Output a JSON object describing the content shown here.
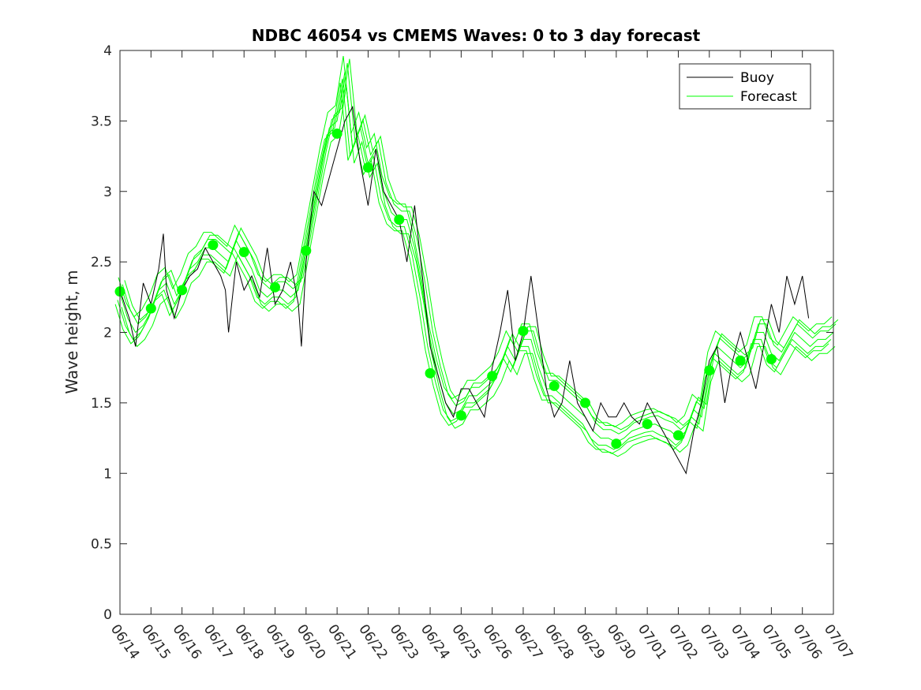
{
  "chart_data": {
    "type": "line",
    "title": "NDBC 46054 vs CMEMS Waves: 0 to 3 day forecast",
    "xlabel": "",
    "ylabel": "Wave height, m",
    "ylim": [
      0,
      4
    ],
    "yticks": [
      "0",
      "0.5",
      "1",
      "1.5",
      "2",
      "2.5",
      "3",
      "3.5",
      "4"
    ],
    "xlim": [
      "06/14",
      "07/07"
    ],
    "xtick_labels": [
      "06/14",
      "06/15",
      "06/16",
      "06/17",
      "06/18",
      "06/19",
      "06/20",
      "06/21",
      "06/22",
      "06/23",
      "06/24",
      "06/25",
      "06/26",
      "06/27",
      "06/28",
      "06/29",
      "06/30",
      "07/01",
      "07/02",
      "07/03",
      "07/04",
      "07/05",
      "07/06",
      "07/07"
    ],
    "grid": false,
    "legend": {
      "placement": "top-right",
      "entries": [
        "Buoy",
        "Forecast"
      ]
    },
    "colors": {
      "buoy": "#000000",
      "forecast": "#00ff00",
      "axes": "#262626"
    },
    "series": [
      {
        "name": "Buoy",
        "x": [
          0,
          0.3,
          0.5,
          0.75,
          1,
          1.25,
          1.4,
          1.5,
          1.75,
          2,
          2.25,
          2.5,
          2.75,
          3,
          3.25,
          3.4,
          3.5,
          3.75,
          4,
          4.25,
          4.5,
          4.75,
          5,
          5.25,
          5.5,
          5.75,
          5.85,
          6,
          6.25,
          6.5,
          6.75,
          7,
          7.25,
          7.5,
          7.75,
          8,
          8.25,
          8.5,
          8.75,
          9,
          9.25,
          9.5,
          9.75,
          10,
          10.25,
          10.5,
          10.75,
          11,
          11.25,
          11.5,
          11.75,
          12,
          12.25,
          12.5,
          12.75,
          13,
          13.25,
          13.5,
          13.75,
          14,
          14.25,
          14.5,
          14.75,
          15,
          15.25,
          15.5,
          15.75,
          16,
          16.25,
          16.5,
          16.75,
          17,
          17.25,
          17.5,
          17.75,
          18,
          18.25,
          18.5,
          18.75,
          19,
          19.25,
          19.5,
          19.75,
          20,
          20.25,
          20.5,
          20.75,
          21,
          21.25,
          21.5,
          21.75,
          22,
          22.2
        ],
        "y": [
          2.3,
          2.1,
          1.9,
          2.35,
          2.2,
          2.45,
          2.7,
          2.3,
          2.1,
          2.3,
          2.4,
          2.45,
          2.6,
          2.5,
          2.4,
          2.3,
          2.0,
          2.5,
          2.3,
          2.4,
          2.25,
          2.6,
          2.2,
          2.3,
          2.5,
          2.2,
          1.9,
          2.5,
          3.0,
          2.9,
          3.1,
          3.3,
          3.5,
          3.6,
          3.2,
          2.9,
          3.3,
          3.0,
          2.9,
          2.8,
          2.5,
          2.9,
          2.4,
          1.9,
          1.7,
          1.5,
          1.4,
          1.6,
          1.6,
          1.5,
          1.4,
          1.75,
          2.0,
          2.3,
          1.8,
          2.0,
          2.4,
          2.0,
          1.6,
          1.4,
          1.5,
          1.8,
          1.5,
          1.4,
          1.3,
          1.5,
          1.4,
          1.4,
          1.5,
          1.4,
          1.35,
          1.5,
          1.4,
          1.3,
          1.2,
          1.1,
          1.0,
          1.3,
          1.5,
          1.8,
          1.9,
          1.5,
          1.8,
          2.0,
          1.8,
          1.6,
          1.9,
          2.2,
          2.0,
          2.4,
          2.2,
          2.4,
          2.1
        ]
      },
      {
        "name": "Forecast",
        "x": [
          0,
          0.25,
          0.5,
          0.75,
          1,
          1.25,
          1.5,
          1.75,
          2,
          2.25,
          2.5,
          2.75,
          3,
          3.25,
          3.5,
          3.75,
          4,
          4.25,
          4.5,
          4.75,
          5,
          5.25,
          5.5,
          5.75,
          6,
          6.25,
          6.5,
          6.75,
          7,
          7.25,
          7.5,
          7.75,
          8,
          8.25,
          8.5,
          8.75,
          9,
          9.25,
          9.5,
          9.75,
          10,
          10.25,
          10.5,
          10.75,
          11,
          11.25,
          11.5,
          11.75,
          12,
          12.25,
          12.5,
          12.75,
          13,
          13.25,
          13.5,
          13.75,
          14,
          14.25,
          14.5,
          14.75,
          15,
          15.25,
          15.5,
          15.75,
          16,
          16.25,
          16.5,
          16.75,
          17,
          17.25,
          17.5,
          17.75,
          18,
          18.25,
          18.5,
          18.75,
          19,
          19.25,
          19.5,
          19.75,
          20,
          20.25,
          20.5,
          20.75,
          21,
          21.25,
          21.5,
          21.75,
          22,
          22.25,
          22.5,
          22.75,
          23
        ],
        "y": [
          2.28,
          2.1,
          2.0,
          2.05,
          2.15,
          2.3,
          2.35,
          2.2,
          2.3,
          2.45,
          2.5,
          2.6,
          2.6,
          2.55,
          2.5,
          2.65,
          2.55,
          2.45,
          2.3,
          2.25,
          2.3,
          2.3,
          2.25,
          2.3,
          2.6,
          2.9,
          3.2,
          3.45,
          3.5,
          3.85,
          3.3,
          3.45,
          3.2,
          3.3,
          3.0,
          2.85,
          2.8,
          2.8,
          2.6,
          2.3,
          1.95,
          1.7,
          1.5,
          1.42,
          1.45,
          1.55,
          1.55,
          1.6,
          1.65,
          1.75,
          1.9,
          1.8,
          1.95,
          1.95,
          1.75,
          1.6,
          1.6,
          1.55,
          1.5,
          1.45,
          1.4,
          1.3,
          1.25,
          1.25,
          1.22,
          1.25,
          1.3,
          1.32,
          1.34,
          1.35,
          1.32,
          1.3,
          1.25,
          1.3,
          1.45,
          1.4,
          1.75,
          1.9,
          1.85,
          1.8,
          1.75,
          1.8,
          2.0,
          2.0,
          1.85,
          1.8,
          1.9,
          2.0,
          1.95,
          1.9,
          1.95,
          1.95,
          2.0
        ]
      }
    ],
    "markers": {
      "name": "Forecast day markers",
      "x": [
        0,
        1,
        2,
        3,
        4,
        5,
        6,
        7,
        8,
        9,
        10,
        11,
        12,
        13,
        14,
        15,
        16,
        17,
        18,
        19,
        20,
        21
      ],
      "y": [
        2.29,
        2.17,
        2.3,
        2.62,
        2.57,
        2.32,
        2.58,
        3.41,
        3.17,
        2.8,
        1.71,
        1.41,
        1.69,
        2.01,
        1.62,
        1.5,
        1.21,
        1.35,
        1.27,
        1.73,
        1.8,
        1.81
      ]
    }
  }
}
